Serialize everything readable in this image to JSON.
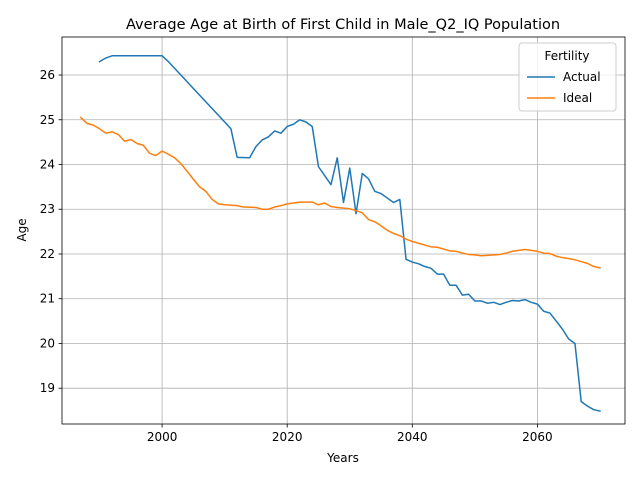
{
  "chart_data": {
    "type": "line",
    "title": "Average Age at Birth of First Child in Male_Q2_IQ Population",
    "xlabel": "Years",
    "ylabel": "Age",
    "xlim": [
      1984,
      2074
    ],
    "ylim": [
      18.2,
      26.85
    ],
    "xticks": [
      2000,
      2020,
      2040,
      2060
    ],
    "yticks": [
      19,
      20,
      21,
      22,
      23,
      24,
      25,
      26
    ],
    "grid": true,
    "legend": {
      "title": "Fertility",
      "placement": "top-right"
    },
    "series": [
      {
        "name": "Actual",
        "color": "#1f77b4",
        "points": [
          [
            1990,
            26.3
          ],
          [
            1991,
            26.38
          ],
          [
            1992,
            26.43
          ],
          [
            1993,
            26.43
          ],
          [
            1995,
            26.43
          ],
          [
            1998,
            26.43
          ],
          [
            2000,
            26.43
          ],
          [
            2001,
            26.3
          ],
          [
            2003,
            26.0
          ],
          [
            2005,
            25.7
          ],
          [
            2007,
            25.4
          ],
          [
            2009,
            25.1
          ],
          [
            2011,
            24.8
          ],
          [
            2012,
            24.16
          ],
          [
            2014,
            24.15
          ],
          [
            2015,
            24.4
          ],
          [
            2016,
            24.55
          ],
          [
            2017,
            24.62
          ],
          [
            2018,
            24.75
          ],
          [
            2019,
            24.7
          ],
          [
            2020,
            24.85
          ],
          [
            2021,
            24.9
          ],
          [
            2022,
            25.0
          ],
          [
            2023,
            24.95
          ],
          [
            2024,
            24.85
          ],
          [
            2025,
            23.95
          ],
          [
            2026,
            23.75
          ],
          [
            2027,
            23.55
          ],
          [
            2028,
            24.15
          ],
          [
            2029,
            23.15
          ],
          [
            2030,
            23.92
          ],
          [
            2031,
            22.9
          ],
          [
            2032,
            23.8
          ],
          [
            2033,
            23.68
          ],
          [
            2034,
            23.4
          ],
          [
            2035,
            23.35
          ],
          [
            2036,
            23.25
          ],
          [
            2037,
            23.15
          ],
          [
            2038,
            23.22
          ],
          [
            2039,
            21.88
          ],
          [
            2040,
            21.82
          ],
          [
            2041,
            21.78
          ],
          [
            2042,
            21.72
          ],
          [
            2043,
            21.68
          ],
          [
            2044,
            21.55
          ],
          [
            2045,
            21.55
          ],
          [
            2046,
            21.3
          ],
          [
            2047,
            21.3
          ],
          [
            2048,
            21.08
          ],
          [
            2049,
            21.1
          ],
          [
            2050,
            20.95
          ],
          [
            2051,
            20.95
          ],
          [
            2052,
            20.9
          ],
          [
            2053,
            20.92
          ],
          [
            2054,
            20.87
          ],
          [
            2055,
            20.92
          ],
          [
            2056,
            20.96
          ],
          [
            2057,
            20.95
          ],
          [
            2058,
            20.98
          ],
          [
            2059,
            20.92
          ],
          [
            2060,
            20.88
          ],
          [
            2061,
            20.72
          ],
          [
            2062,
            20.68
          ],
          [
            2063,
            20.5
          ],
          [
            2064,
            20.32
          ],
          [
            2065,
            20.1
          ],
          [
            2066,
            20.0
          ],
          [
            2067,
            18.7
          ],
          [
            2068,
            18.6
          ],
          [
            2069,
            18.52
          ],
          [
            2070,
            18.49
          ]
        ]
      },
      {
        "name": "Ideal",
        "color": "#ff7f0e",
        "points": [
          [
            1987,
            25.05
          ],
          [
            1988,
            24.92
          ],
          [
            1989,
            24.88
          ],
          [
            1990,
            24.8
          ],
          [
            1991,
            24.7
          ],
          [
            1992,
            24.73
          ],
          [
            1993,
            24.67
          ],
          [
            1994,
            24.52
          ],
          [
            1995,
            24.56
          ],
          [
            1996,
            24.47
          ],
          [
            1997,
            24.43
          ],
          [
            1998,
            24.25
          ],
          [
            1999,
            24.2
          ],
          [
            2000,
            24.3
          ],
          [
            2001,
            24.23
          ],
          [
            2002,
            24.15
          ],
          [
            2003,
            24.02
          ],
          [
            2004,
            23.85
          ],
          [
            2005,
            23.67
          ],
          [
            2006,
            23.5
          ],
          [
            2007,
            23.4
          ],
          [
            2008,
            23.22
          ],
          [
            2009,
            23.12
          ],
          [
            2010,
            23.1
          ],
          [
            2012,
            23.08
          ],
          [
            2013,
            23.05
          ],
          [
            2015,
            23.04
          ],
          [
            2016,
            23.0
          ],
          [
            2017,
            23.0
          ],
          [
            2018,
            23.05
          ],
          [
            2019,
            23.08
          ],
          [
            2020,
            23.12
          ],
          [
            2022,
            23.16
          ],
          [
            2024,
            23.16
          ],
          [
            2025,
            23.1
          ],
          [
            2026,
            23.14
          ],
          [
            2027,
            23.06
          ],
          [
            2028,
            23.04
          ],
          [
            2030,
            23.01
          ],
          [
            2031,
            22.97
          ],
          [
            2032,
            22.92
          ],
          [
            2033,
            22.77
          ],
          [
            2034,
            22.72
          ],
          [
            2035,
            22.63
          ],
          [
            2036,
            22.53
          ],
          [
            2037,
            22.46
          ],
          [
            2038,
            22.41
          ],
          [
            2039,
            22.33
          ],
          [
            2040,
            22.28
          ],
          [
            2041,
            22.24
          ],
          [
            2042,
            22.2
          ],
          [
            2043,
            22.16
          ],
          [
            2044,
            22.15
          ],
          [
            2045,
            22.11
          ],
          [
            2046,
            22.07
          ],
          [
            2047,
            22.06
          ],
          [
            2048,
            22.02
          ],
          [
            2049,
            21.99
          ],
          [
            2050,
            21.98
          ],
          [
            2051,
            21.96
          ],
          [
            2052,
            21.97
          ],
          [
            2054,
            21.99
          ],
          [
            2055,
            22.02
          ],
          [
            2056,
            22.06
          ],
          [
            2057,
            22.08
          ],
          [
            2058,
            22.1
          ],
          [
            2059,
            22.08
          ],
          [
            2060,
            22.06
          ],
          [
            2061,
            22.02
          ],
          [
            2062,
            22.01
          ],
          [
            2063,
            21.95
          ],
          [
            2064,
            21.92
          ],
          [
            2065,
            21.9
          ],
          [
            2066,
            21.87
          ],
          [
            2067,
            21.83
          ],
          [
            2068,
            21.79
          ],
          [
            2069,
            21.72
          ],
          [
            2070,
            21.69
          ]
        ]
      }
    ]
  }
}
